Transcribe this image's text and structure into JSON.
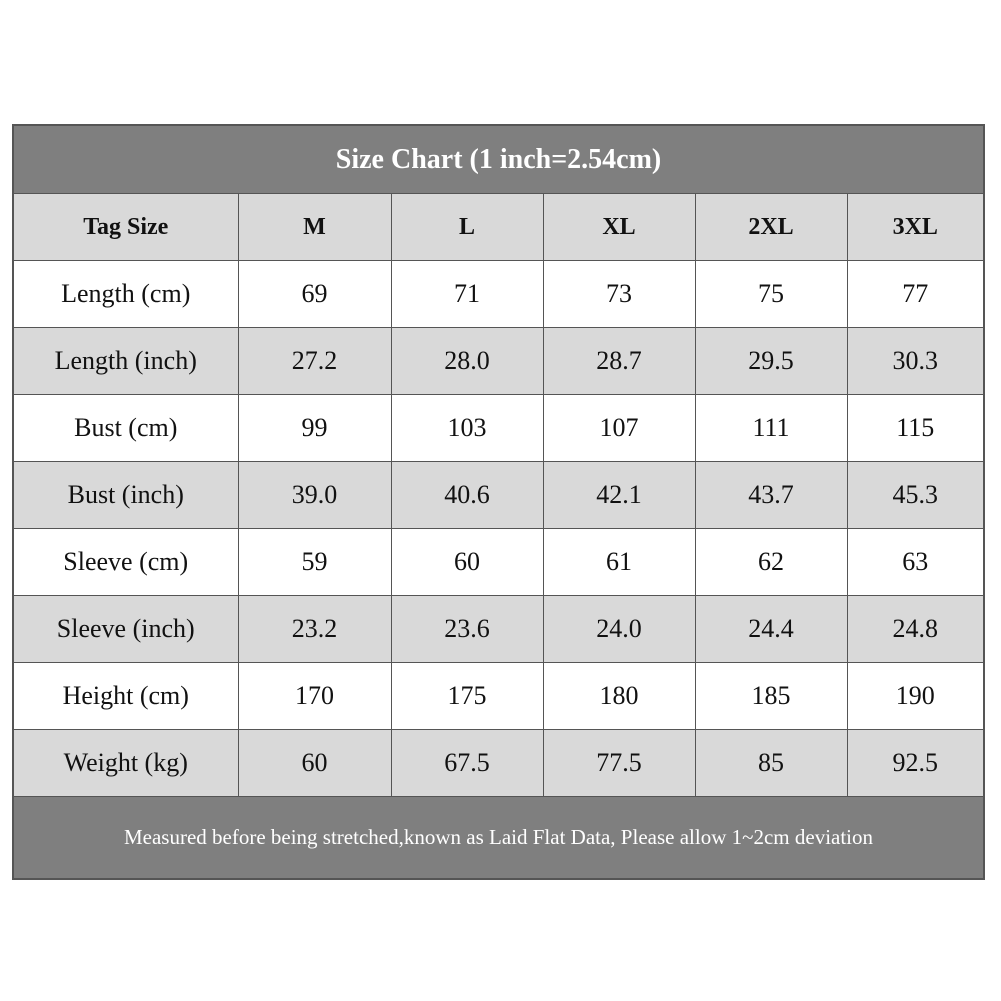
{
  "title": "Size Chart (1 inch=2.54cm)",
  "table": {
    "header": [
      "Tag Size",
      "M",
      "L",
      "XL",
      "2XL",
      "3XL"
    ],
    "rows": [
      [
        "Length (cm)",
        "69",
        "71",
        "73",
        "75",
        "77"
      ],
      [
        "Length (inch)",
        "27.2",
        "28.0",
        "28.7",
        "29.5",
        "30.3"
      ],
      [
        "Bust (cm)",
        "99",
        "103",
        "107",
        "111",
        "115"
      ],
      [
        "Bust (inch)",
        "39.0",
        "40.6",
        "42.1",
        "43.7",
        "45.3"
      ],
      [
        "Sleeve (cm)",
        "59",
        "60",
        "61",
        "62",
        "63"
      ],
      [
        "Sleeve (inch)",
        "23.2",
        "23.6",
        "24.0",
        "24.4",
        "24.8"
      ],
      [
        "Height (cm)",
        "170",
        "175",
        "180",
        "185",
        "190"
      ],
      [
        "Weight (kg)",
        "60",
        "67.5",
        "77.5",
        "85",
        "92.5"
      ]
    ]
  },
  "footer": "Measured before being stretched,known as Laid Flat Data, Please allow 1~2cm deviation"
}
